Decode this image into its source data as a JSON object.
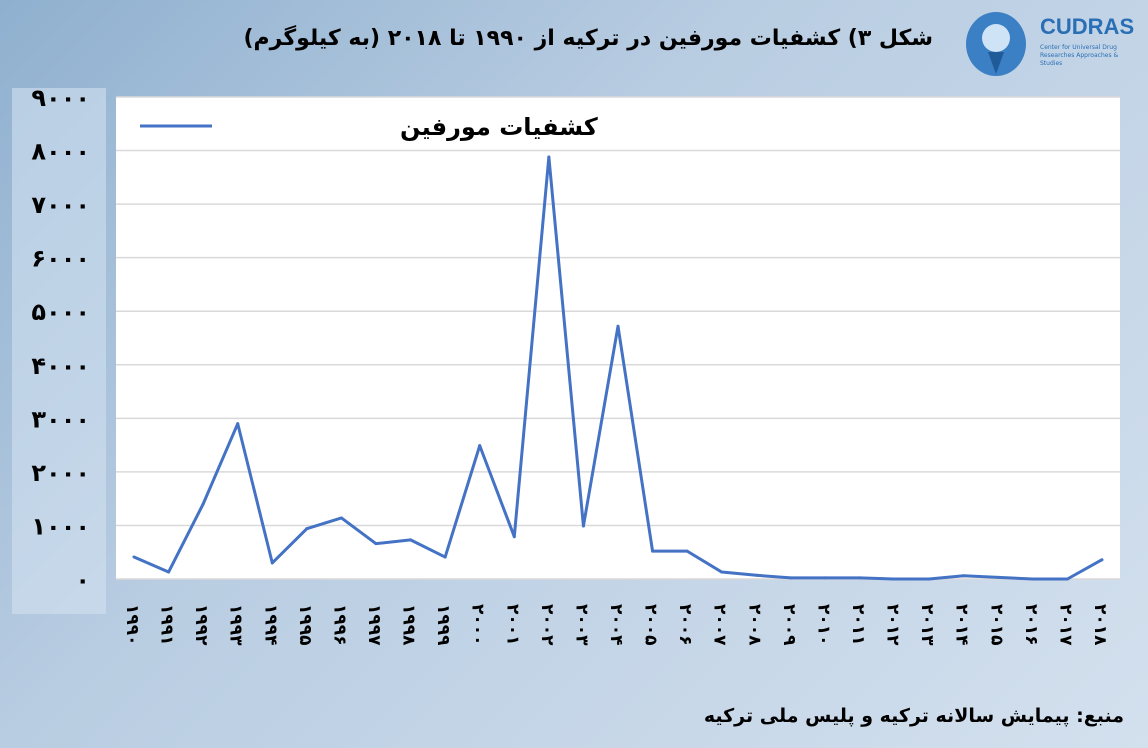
{
  "header": {
    "title": "شکل ۳) کشفیات مورفین در ترکیه از ۱۹۹۰ تا ۲۰۱۸ (به کیلوگرم)",
    "logo_name": "CUDRAS",
    "logo_subtitle": "Center for Universal Drug Researches Approaches & Studies"
  },
  "source": "منبع: پیمایش سالانه ترکیه و پلیس ملی ترکیه",
  "chart_data": {
    "type": "line",
    "title": "شکل ۳) کشفیات مورفین در ترکیه از ۱۹۹۰ تا ۲۰۱۸ (به کیلوگرم)",
    "ylim": [
      0,
      9000
    ],
    "yticks": [
      0,
      1000,
      2000,
      3000,
      4000,
      5000,
      6000,
      7000,
      8000,
      9000
    ],
    "ytick_labels": [
      "۰",
      "۱۰۰۰",
      "۲۰۰۰",
      "۳۰۰۰",
      "۴۰۰۰",
      "۵۰۰۰",
      "۶۰۰۰",
      "۷۰۰۰",
      "۸۰۰۰",
      "۹۰۰۰"
    ],
    "grid": true,
    "legend": "top-left",
    "categories": [
      "۱۹۹۰",
      "۱۹۹۱",
      "۱۹۹۲",
      "۱۹۹۳",
      "۱۹۹۴",
      "۱۹۹۵",
      "۱۹۹۶",
      "۱۹۹۷",
      "۱۹۹۸",
      "۱۹۹۹",
      "۲۰۰۰",
      "۲۰۰۱",
      "۲۰۰۲",
      "۲۰۰۳",
      "۲۰۰۴",
      "۲۰۰۵",
      "۲۰۰۶",
      "۲۰۰۷",
      "۲۰۰۸",
      "۲۰۰۹",
      "۲۰۱۰",
      "۲۰۱۱",
      "۲۰۱۲",
      "۲۰۱۳",
      "۲۰۱۴",
      "۲۰۱۵",
      "۲۰۱۶",
      "۲۰۱۷",
      "۲۰۱۸"
    ],
    "series": [
      {
        "name": "کشفیات مورفین",
        "color": "#4472c4",
        "values": [
          410,
          130,
          1400,
          2900,
          300,
          940,
          1140,
          660,
          730,
          410,
          2490,
          790,
          7880,
          990,
          4720,
          520,
          520,
          130,
          70,
          20,
          20,
          20,
          0,
          0,
          60,
          30,
          0,
          0,
          360
        ]
      }
    ]
  }
}
